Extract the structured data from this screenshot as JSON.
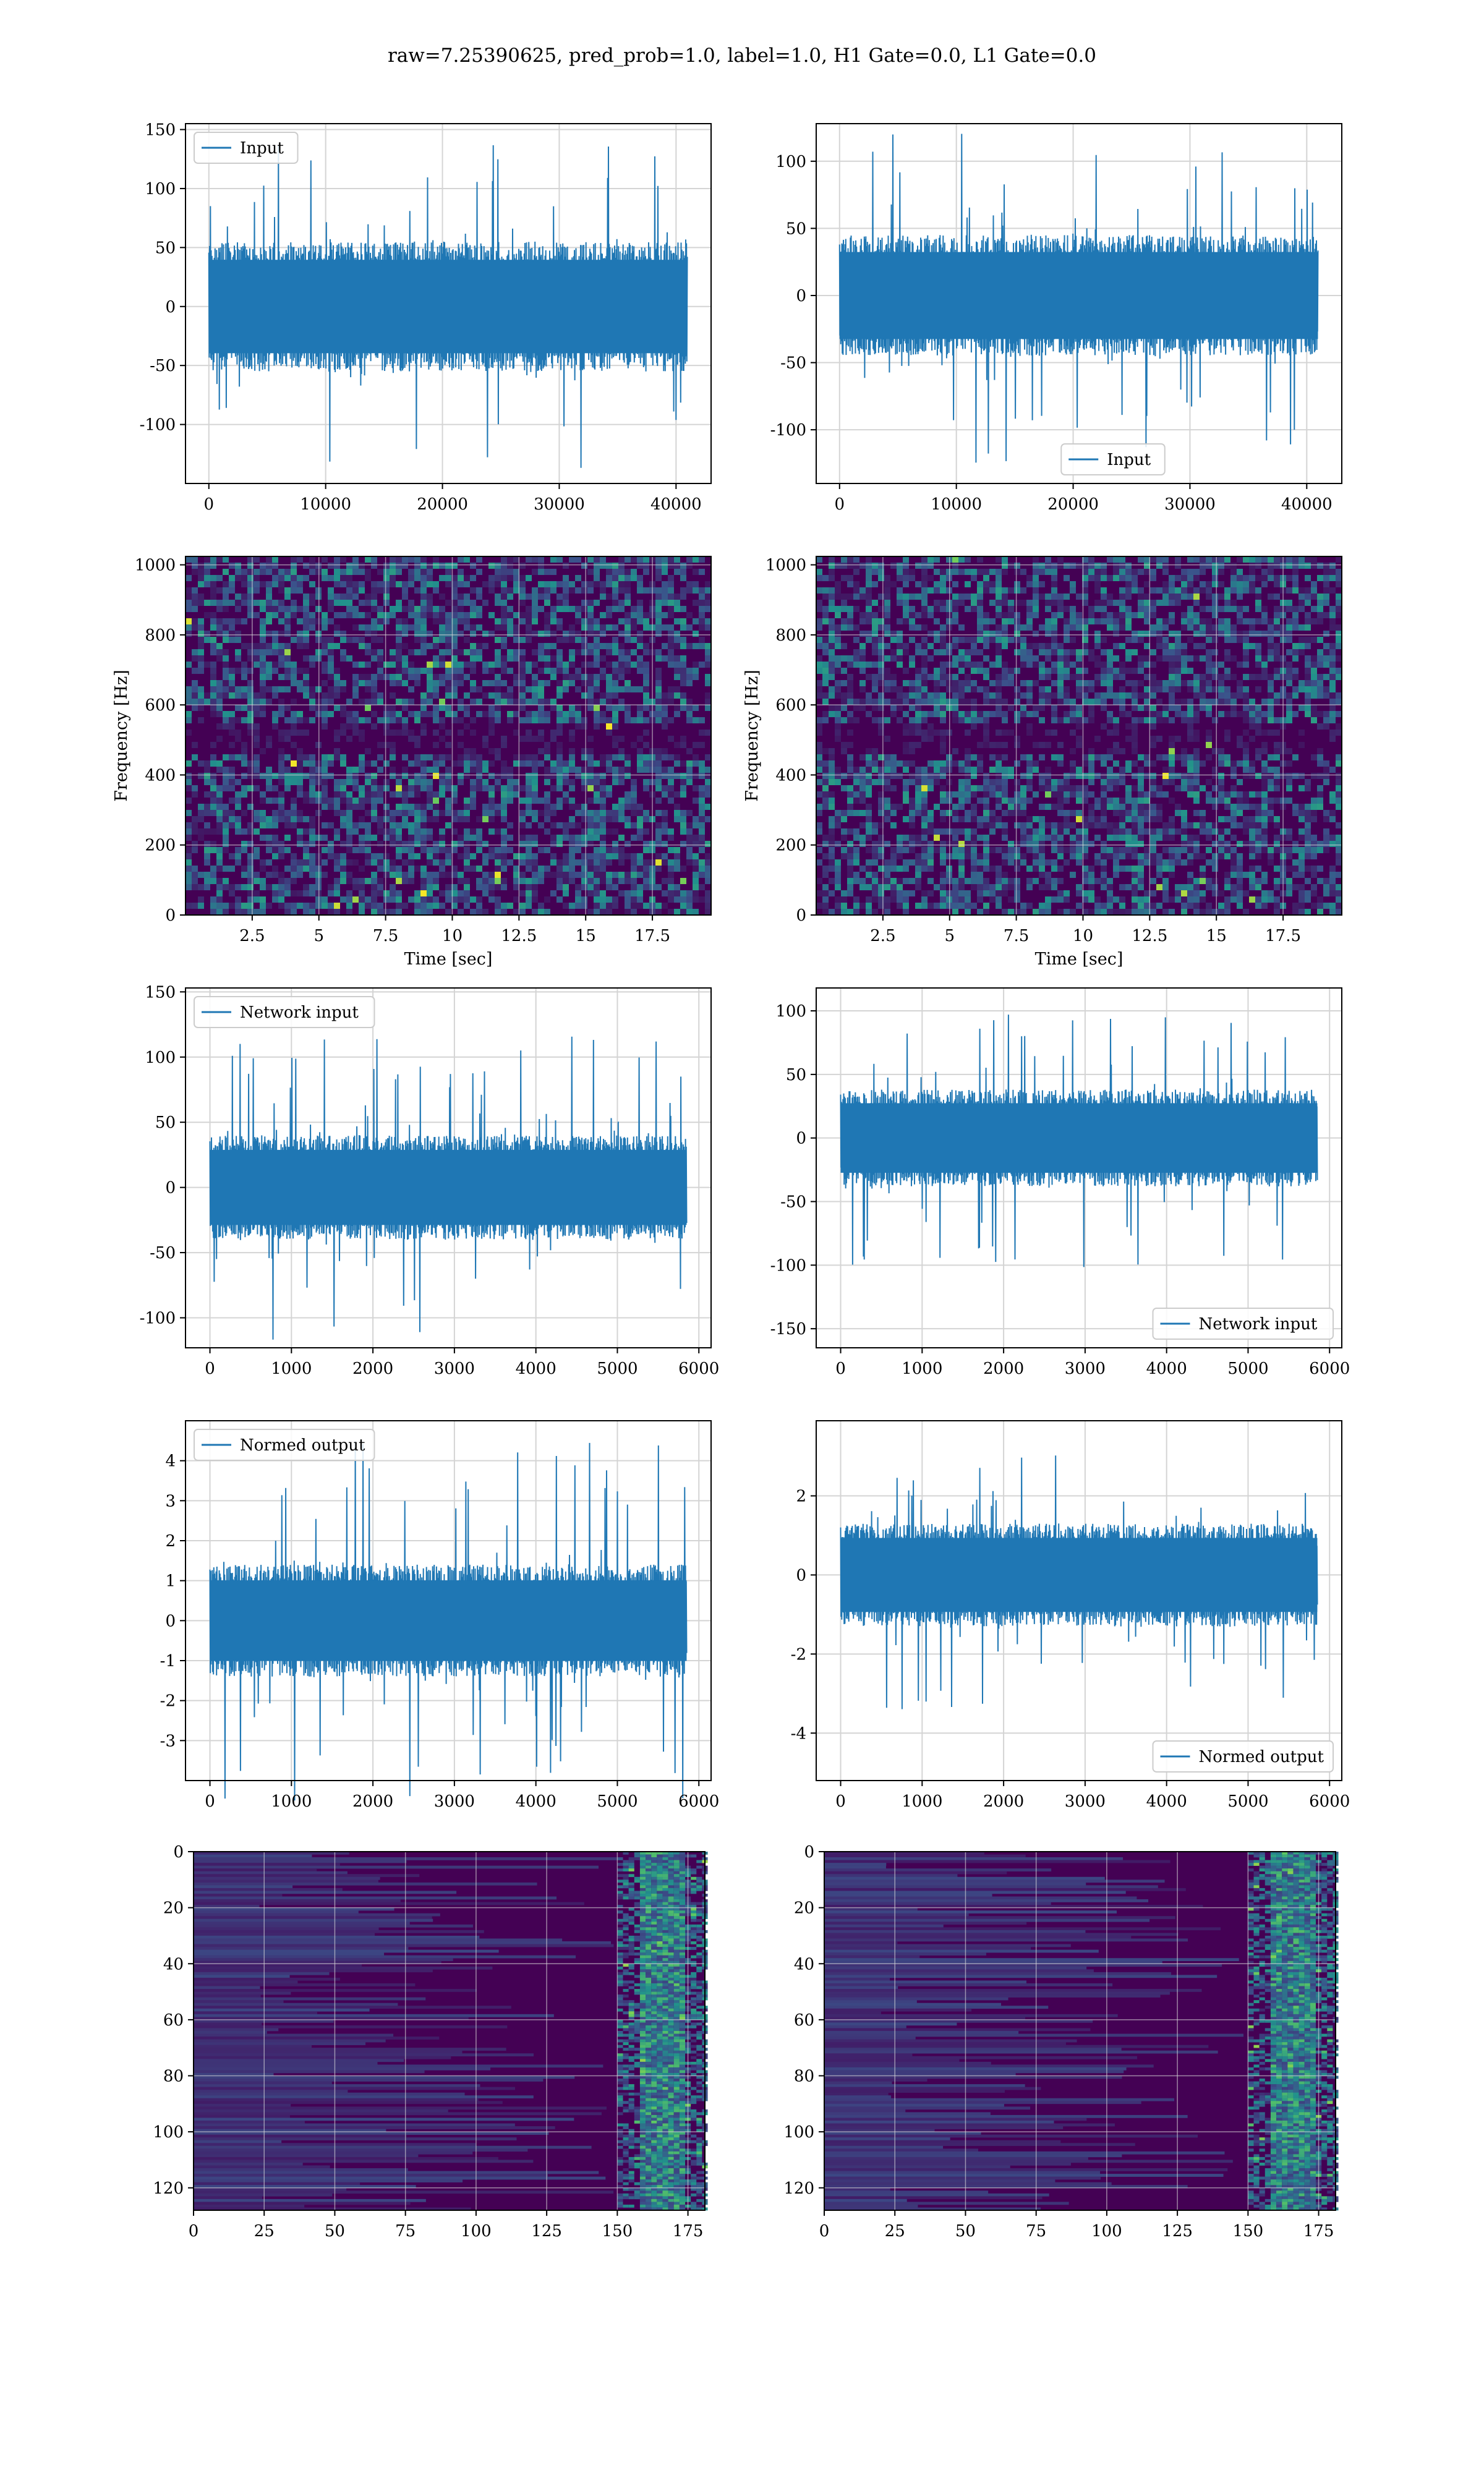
{
  "figure": {
    "title": "raw=7.25390625, pred_prob=1.0, label=1.0, H1 Gate=0.0, L1 Gate=0.0"
  },
  "colors": {
    "line": "#1f77b4",
    "grid": "#d4d4d4",
    "axes": "#555555",
    "viridis_dark": "#440154",
    "viridis_mid": "#31688e",
    "viridis_teal": "#21918c",
    "viridis_green": "#5ec962",
    "viridis_yellow": "#fde725"
  },
  "chart_data": [
    {
      "id": "r1c1",
      "type": "line",
      "title": "",
      "xlabel": "",
      "ylabel": "",
      "xlim": [
        -2000,
        43000
      ],
      "ylim": [
        -150,
        155
      ],
      "xticks": [
        0,
        10000,
        20000,
        30000,
        40000
      ],
      "yticks": [
        -100,
        -50,
        0,
        50,
        100,
        150
      ],
      "grid": true,
      "legend": "upper-left",
      "series": [
        {
          "name": "Input",
          "x_range": [
            0,
            40960
          ],
          "amplitude_core": 55,
          "amplitude_peak": 140
        }
      ]
    },
    {
      "id": "r1c2",
      "type": "line",
      "title": "",
      "xlabel": "",
      "ylabel": "",
      "xlim": [
        -2000,
        43000
      ],
      "ylim": [
        -140,
        128
      ],
      "xticks": [
        0,
        10000,
        20000,
        30000,
        40000
      ],
      "yticks": [
        -100,
        -50,
        0,
        50,
        100
      ],
      "grid": true,
      "legend": "lower-center",
      "series": [
        {
          "name": "Input",
          "x_range": [
            0,
            40960
          ],
          "amplitude_core": 45,
          "amplitude_peak": 125
        }
      ]
    },
    {
      "id": "r2c1",
      "type": "heatmap",
      "title": "",
      "xlabel": "Time [sec]",
      "ylabel": "Frequency [Hz]",
      "xlim": [
        0,
        19.7
      ],
      "ylim": [
        0,
        1024
      ],
      "xticks": [
        2.5,
        5.0,
        7.5,
        10.0,
        12.5,
        15.0,
        17.5
      ],
      "yticks": [
        0,
        200,
        400,
        600,
        800,
        1000
      ],
      "grid": true,
      "colormap": "viridis",
      "dark_band_hz": 510
    },
    {
      "id": "r2c2",
      "type": "heatmap",
      "title": "",
      "xlabel": "Time [sec]",
      "ylabel": "Frequency [Hz]",
      "xlim": [
        0,
        19.7
      ],
      "ylim": [
        0,
        1024
      ],
      "xticks": [
        2.5,
        5.0,
        7.5,
        10.0,
        12.5,
        15.0,
        17.5
      ],
      "yticks": [
        0,
        200,
        400,
        600,
        800,
        1000
      ],
      "grid": true,
      "colormap": "viridis",
      "dark_band_hz": 510
    },
    {
      "id": "r3c1",
      "type": "line",
      "title": "",
      "xlabel": "",
      "ylabel": "",
      "xlim": [
        -300,
        6150
      ],
      "ylim": [
        -123,
        153
      ],
      "xticks": [
        0,
        1000,
        2000,
        3000,
        4000,
        5000,
        6000
      ],
      "yticks": [
        -100,
        -50,
        0,
        50,
        100,
        150
      ],
      "grid": true,
      "legend": "upper-left",
      "series": [
        {
          "name": "Network input",
          "x_range": [
            0,
            5850
          ],
          "amplitude_core": 40,
          "amplitude_peak": 120
        }
      ]
    },
    {
      "id": "r3c2",
      "type": "line",
      "title": "",
      "xlabel": "",
      "ylabel": "",
      "xlim": [
        -300,
        6150
      ],
      "ylim": [
        -165,
        118
      ],
      "xticks": [
        0,
        1000,
        2000,
        3000,
        4000,
        5000,
        6000
      ],
      "yticks": [
        -150,
        -100,
        -50,
        0,
        50,
        100
      ],
      "grid": true,
      "legend": "lower-right",
      "series": [
        {
          "name": "Network input",
          "x_range": [
            0,
            5850
          ],
          "amplitude_core": 38,
          "amplitude_peak": 105
        }
      ]
    },
    {
      "id": "r4c1",
      "type": "line",
      "title": "",
      "xlabel": "",
      "ylabel": "",
      "xlim": [
        -300,
        6150
      ],
      "ylim": [
        -4.0,
        5.0
      ],
      "xticks": [
        0,
        1000,
        2000,
        3000,
        4000,
        5000,
        6000
      ],
      "yticks": [
        -3,
        -2,
        -1,
        0,
        1,
        2,
        3,
        4
      ],
      "grid": true,
      "legend": "upper-left",
      "series": [
        {
          "name": "Normed output",
          "x_range": [
            0,
            5850
          ],
          "amplitude_core": 1.4,
          "amplitude_peak": 4.5
        }
      ]
    },
    {
      "id": "r4c2",
      "type": "line",
      "title": "",
      "xlabel": "",
      "ylabel": "",
      "xlim": [
        -300,
        6150
      ],
      "ylim": [
        -5.2,
        3.9
      ],
      "xticks": [
        0,
        1000,
        2000,
        3000,
        4000,
        5000,
        6000
      ],
      "yticks": [
        -4,
        -2,
        0,
        2
      ],
      "grid": true,
      "legend": "lower-right",
      "series": [
        {
          "name": "Normed output",
          "x_range": [
            0,
            5850
          ],
          "amplitude_core": 1.3,
          "amplitude_peak": 3.4
        }
      ]
    },
    {
      "id": "r5c1",
      "type": "heatmap",
      "title": "",
      "xlabel": "",
      "ylabel": "",
      "xlim": [
        0,
        181
      ],
      "ylim": [
        128,
        0
      ],
      "xticks": [
        0,
        25,
        50,
        75,
        100,
        125,
        150,
        175
      ],
      "yticks": [
        0,
        20,
        40,
        60,
        80,
        100,
        120
      ],
      "grid": true,
      "colormap": "viridis",
      "hot_columns": [
        150,
        181
      ]
    },
    {
      "id": "r5c2",
      "type": "heatmap",
      "title": "",
      "xlabel": "",
      "ylabel": "",
      "xlim": [
        0,
        181
      ],
      "ylim": [
        128,
        0
      ],
      "xticks": [
        0,
        25,
        50,
        75,
        100,
        125,
        150,
        175
      ],
      "yticks": [
        0,
        20,
        40,
        60,
        80,
        100,
        120
      ],
      "grid": true,
      "colormap": "viridis",
      "hot_columns": [
        150,
        181
      ]
    }
  ]
}
